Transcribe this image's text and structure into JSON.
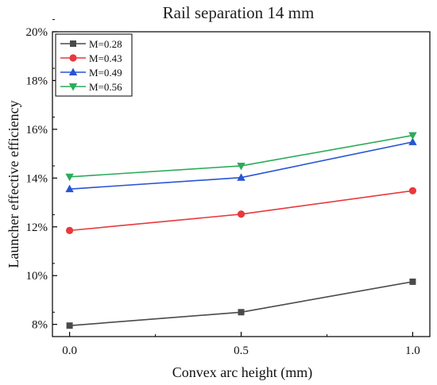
{
  "chart_data": {
    "type": "line",
    "title": "Rail separation 14 mm",
    "xlabel": "Convex arc height (mm)",
    "ylabel": "Launcher effective efficiency",
    "x": [
      0.0,
      0.5,
      1.0
    ],
    "x_ticks": [
      "0.0",
      "0.5",
      "1.0"
    ],
    "xlim": [
      -0.05,
      1.05
    ],
    "ylim": [
      7.5,
      20
    ],
    "y_ticks": [
      "8%",
      "10%",
      "12%",
      "14%",
      "16%",
      "18%",
      "20%"
    ],
    "y_tick_values": [
      8,
      10,
      12,
      14,
      16,
      18,
      20
    ],
    "grid": false,
    "legend_position": "top-left",
    "series": [
      {
        "name": "M=0.28",
        "values": [
          7.95,
          8.5,
          9.75
        ],
        "color": "#4a4a4a",
        "marker": "square"
      },
      {
        "name": "M=0.43",
        "values": [
          11.85,
          12.52,
          13.48
        ],
        "color": "#e8393c",
        "marker": "circle"
      },
      {
        "name": "M=0.49",
        "values": [
          13.55,
          14.02,
          15.48
        ],
        "color": "#2755d3",
        "marker": "triangle-up"
      },
      {
        "name": "M=0.56",
        "values": [
          14.05,
          14.5,
          15.75
        ],
        "color": "#2bab5a",
        "marker": "triangle-down"
      }
    ]
  }
}
